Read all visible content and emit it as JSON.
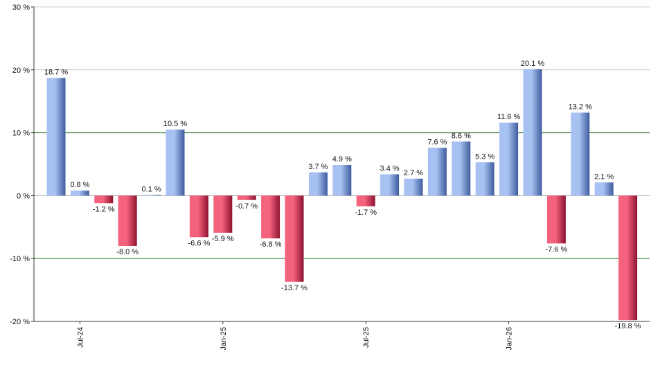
{
  "chart_data": {
    "type": "bar",
    "title": "",
    "xlabel": "",
    "ylabel": "",
    "ylim": [
      -20,
      30
    ],
    "yticks": [
      -20,
      -10,
      0,
      10,
      20,
      30
    ],
    "ytick_labels": [
      "-20 %",
      "-10 %",
      "0 %",
      "10 %",
      "20 %",
      "30 %"
    ],
    "values": [
      18.7,
      0.8,
      -1.2,
      -8.0,
      0.1,
      10.5,
      -6.6,
      -5.9,
      -0.7,
      -6.8,
      -13.7,
      3.7,
      4.9,
      -1.7,
      3.4,
      2.7,
      7.6,
      8.6,
      5.3,
      11.6,
      20.1,
      -7.6,
      13.2,
      2.1,
      -19.8
    ],
    "value_labels": [
      "18.7 %",
      "0.8 %",
      "-1.2 %",
      "-8.0 %",
      "0.1 %",
      "10.5 %",
      "-6.6 %",
      "-5.9 %",
      "-0.7 %",
      "-6.8 %",
      "-13.7 %",
      "3.7 %",
      "4.9 %",
      "-1.7 %",
      "3.4 %",
      "2.7 %",
      "7.6 %",
      "8.6 %",
      "5.3 %",
      "11.6 %",
      "20.1 %",
      "-7.6 %",
      "13.2 %",
      "2.1 %",
      "-19.8 %"
    ],
    "x_tick_labels": [
      {
        "index": 1,
        "label": "Jul-24"
      },
      {
        "index": 7,
        "label": "Jan-25"
      },
      {
        "index": 13,
        "label": "Jul-25"
      },
      {
        "index": 19,
        "label": "Jan-26"
      }
    ],
    "colors": {
      "positive_light": "#a7c1f2",
      "positive_dark": "#3e5c9e",
      "negative_light": "#f4627e",
      "negative_dark": "#8e1330",
      "grid": "#c8c8c8",
      "grid_emphasis": "#2e7d2e",
      "zero_line": "#b0b0b0",
      "axis": "#333333"
    },
    "grid": true
  }
}
